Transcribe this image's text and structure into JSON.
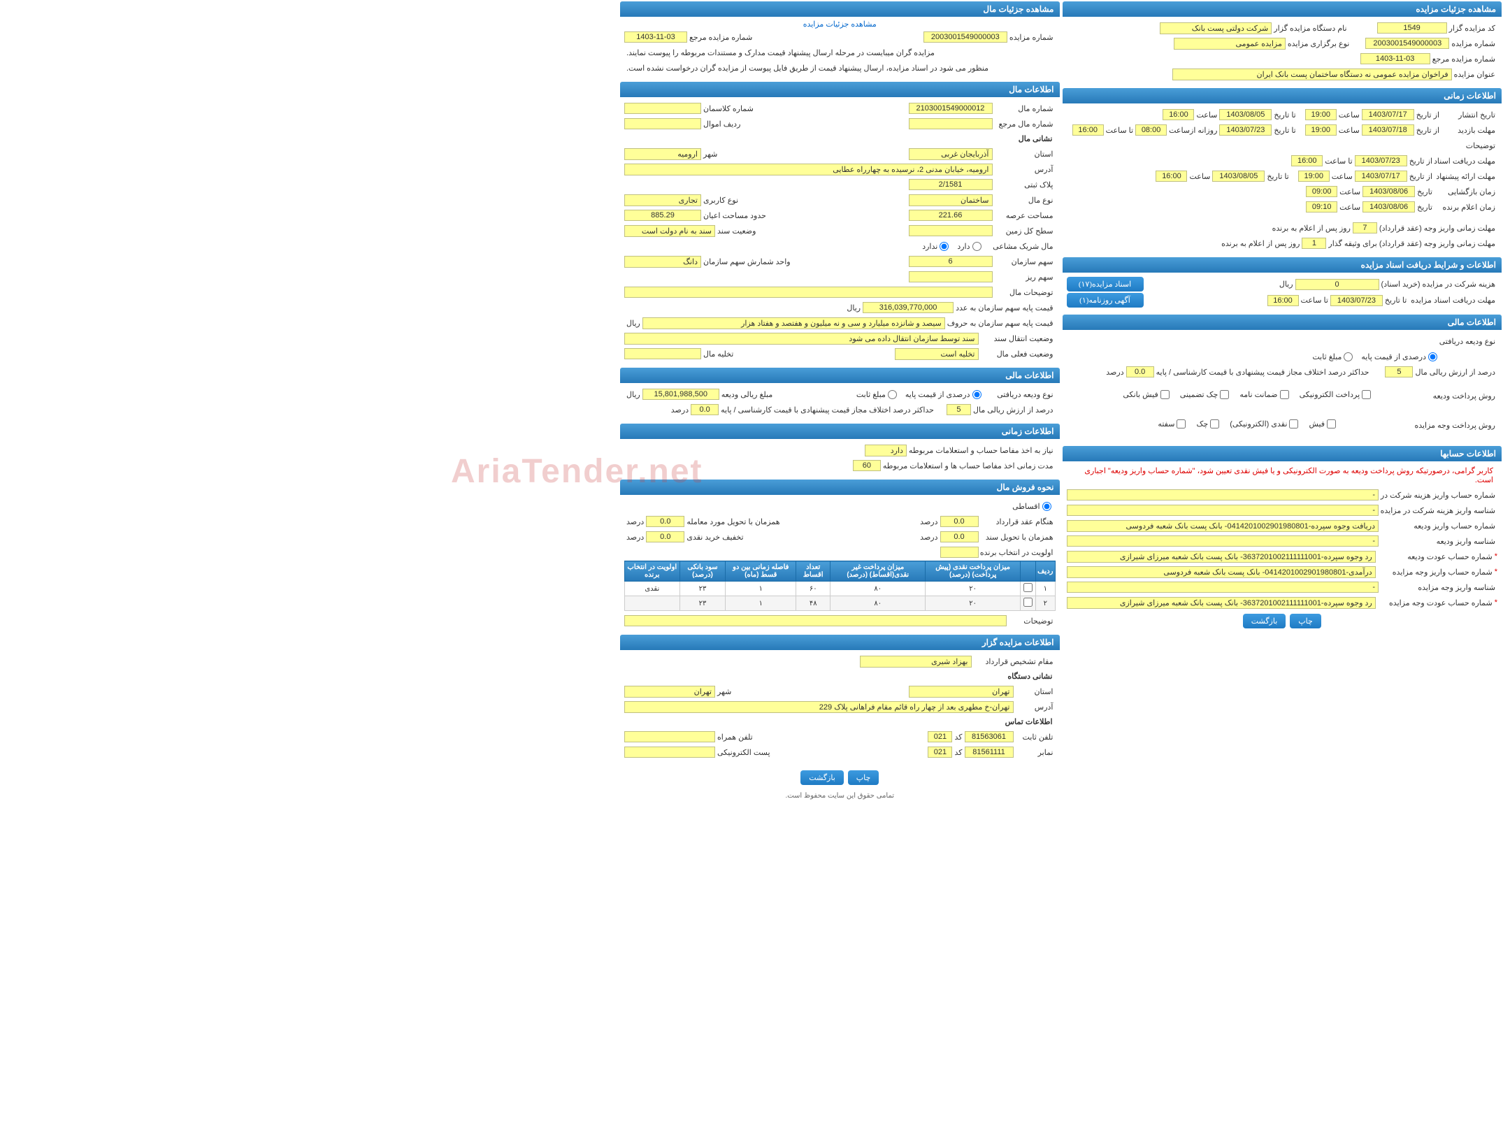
{
  "watermark": "AriaTender.net",
  "right": {
    "s1": {
      "title": "مشاهده جزئیات مزایده",
      "f": {
        "l1": "کد مزایده گزار",
        "v1": "1549",
        "l2": "نام دستگاه مزایده گزار",
        "v2": "شرکت دولتی پست بانک",
        "l3": "شماره مزایده",
        "v3": "2003001549000003",
        "l4": "نوع برگزاری مزایده",
        "v4": "مزایده عمومی",
        "l5": "شماره مزایده مرجع",
        "v5": "1403-11-03",
        "l6": "عنوان مزایده",
        "v6": "فراخوان مزایده عمومی نه دستگاه ساختمان پست بانک ایران"
      }
    },
    "s2": {
      "title": "اطلاعات زمانی",
      "rows": [
        {
          "l": "تاریخ انتشار",
          "a": "از تاریخ",
          "av": "1403/07/17",
          "at": "ساعت",
          "atv": "19:00",
          "b": "تا تاریخ",
          "bv": "1403/08/05",
          "bt": "ساعت",
          "btv": "16:00"
        },
        {
          "l": "مهلت بازدید",
          "a": "از تاریخ",
          "av": "1403/07/18",
          "at": "ساعت",
          "atv": "19:00",
          "b": "تا تاریخ",
          "bv": "1403/07/23",
          "bt": "روزانه ازساعت",
          "btv": "08:00",
          "c": "تا ساعت",
          "cv": "16:00"
        }
      ],
      "desc_label": "توضیحات",
      "rows2": [
        {
          "l": "مهلت دریافت اسناد",
          "a": "از تاریخ",
          "av": "1403/07/23",
          "at": "تا ساعت",
          "atv": "16:00"
        },
        {
          "l": "مهلت ارائه پیشنهاد",
          "a": "از تاریخ",
          "av": "1403/07/17",
          "at": "ساعت",
          "atv": "19:00",
          "b": "تا تاریخ",
          "bv": "1403/08/05",
          "bt": "ساعت",
          "btv": "16:00"
        },
        {
          "l": "زمان بازگشایی",
          "a": "تاریخ",
          "av": "1403/08/06",
          "at": "ساعت",
          "atv": "09:00"
        },
        {
          "l": "زمان اعلام برنده",
          "a": "تاریخ",
          "av": "1403/08/06",
          "at": "ساعت",
          "atv": "09:10"
        }
      ],
      "bottom": [
        {
          "l": "مهلت زمانی واریز وجه (عقد قرارداد)",
          "v": "7",
          "suf": "روز پس از اعلام به برنده"
        },
        {
          "l": "مهلت زمانی واریز وجه (عقد قرارداد) برای وثیقه گذار",
          "v": "1",
          "suf": "روز پس از اعلام به برنده"
        }
      ]
    },
    "s3": {
      "title": "اطلاعات و شرایط دریافت اسناد مزایده",
      "l1": "هزینه شرکت در مزایده (خرید اسناد)",
      "v1": "0",
      "unit1": "ریال",
      "btn1": "اسناد مزایده(۱۷)",
      "l2": "مهلت دریافت اسناد مزایده",
      "l2a": "تا تاریخ",
      "v2a": "1403/07/23",
      "l2b": "تا ساعت",
      "v2b": "16:00",
      "btn2": "آگهی روزنامه(۱)"
    },
    "s4": {
      "title": "اطلاعات مالی",
      "l1": "نوع ودیعه دریافتی",
      "r1": "درصدی از قیمت پایه",
      "r2": "مبلغ ثابت",
      "l2": "درصد از ارزش ریالی مال",
      "v2": "5",
      "l3": "حداکثر درصد اختلاف مجاز قیمت پیشنهادی با قیمت کارشناسی / پایه",
      "v3": "0.0",
      "unit3": "درصد",
      "l4": "روش پرداخت ودیعه",
      "opts4": [
        "پرداخت الکترونیکی",
        "ضمانت نامه",
        "چک تضمینی",
        "فیش بانکی"
      ],
      "l5": "روش پرداخت وجه مزایده",
      "opts5": [
        "فیش",
        "نقدی (الکترونیکی)",
        "چک",
        "سفته"
      ]
    },
    "s5": {
      "title": "اطلاعات حسابها",
      "note": "کاربر گرامی، درصورتیکه روش پرداخت ودیعه به صورت الکترونیکی و یا فیش نقدی تعیین شود، \"شماره حساب واریز ودیعه\" اجباری است.",
      "rows": [
        {
          "l": "شماره حساب واریز هزینه شرکت در مزایده",
          "v": "-"
        },
        {
          "l": "شناسه واریز هزینه شرکت در مزایده",
          "v": "-"
        },
        {
          "l": "شماره حساب واریز ودیعه",
          "v": "دریافت وجوه سپرده-0414201002901980801- بانک پست بانک شعبه فردوسی"
        },
        {
          "l": "شناسه واریز ودیعه",
          "v": "-"
        },
        {
          "l": "شماره حساب عودت ودیعه",
          "v": "رد وجوه سپرده-3637201002111111001- بانک پست بانک شعبه میرزای شیرازی",
          "star": true
        },
        {
          "l": "شماره حساب واریز وجه مزایده",
          "v": "درآمدی-0414201002901980801- بانک پست بانک شعبه فردوسی",
          "star": true
        },
        {
          "l": "شناسه واریز وجه مزایده",
          "v": "-"
        },
        {
          "l": "شماره حساب عودت وجه مزایده",
          "v": "رد وجوه سپرده-3637201002111111001- بانک پست بانک شعبه میرزای شیرازی",
          "star": true
        }
      ],
      "btns": [
        "بازگشت",
        "چاپ"
      ]
    }
  },
  "left": {
    "s1": {
      "title": "مشاهده جزئیات مال",
      "link": "مشاهده جزئیات مزایده",
      "l1": "شماره مزایده",
      "v1": "2003001549000003",
      "l2": "شماره مزایده مرجع",
      "v2": "1403-11-03",
      "note1": "مزایده گران میبایست در مرحله ارسال پیشنهاد قیمت مدارک و مستندات مربوطه را پیوست نمایند.",
      "note2": "منظور می شود در اسناد مزایده، ارسال پیشنهاد قیمت از طریق فایل پیوست از مزایده گران درخواست نشده است."
    },
    "s2": {
      "title": "اطلاعات مال",
      "l1": "شماره مال",
      "v1": "2103001549000012",
      "l2": "شماره کلاسمان",
      "v2": "",
      "l3": "شماره مال مرجع",
      "v3": "",
      "l4": "ردیف اموال",
      "v4": "",
      "sub1": "نشانی مال",
      "l5": "استان",
      "v5": "آذربایجان غربی",
      "l6": "شهر",
      "v6": "ارومیه",
      "l7": "آدرس",
      "v7": "ارومیه، خیابان مدنی 2، نرسیده به چهارراه عطایی",
      "l8": "پلاک ثبتی",
      "v8": "2/1581",
      "l9": "نوع مال",
      "v9": "ساختمان",
      "l10": "نوع کاربری",
      "v10": "تجاری",
      "l11": "مساحت عرصه",
      "v11": "221.66",
      "l12": "حدود مساحت اعیان",
      "v12": "885.29",
      "l13": "سطح کل زمین",
      "v13": "",
      "l14": "وضعیت سند",
      "v14": "سند به نام دولت است",
      "l15": "مال شریک مشاعی",
      "r15a": "دارد",
      "r15b": "ندارد",
      "l16": "سهم سازمان",
      "v16": "6",
      "l17": "واحد شمارش سهم سازمان",
      "v17": "دانگ",
      "l18": "سهم ریز",
      "v18": "",
      "l19": "توضیحات مال",
      "v19": "",
      "l20": "قیمت پایه سهم سازمان به عدد",
      "v20": "316,039,770,000",
      "unit20": "ریال",
      "l21": "قیمت پایه سهم سازمان به حروف",
      "v21": "سیصد و شانزده میلیارد و سی و نه میلیون و هفتصد و هفتاد هزار",
      "unit21": "ریال",
      "l22": "وضعیت انتقال سند",
      "v22": "سند توسط سازمان انتقال داده می شود",
      "l23": "وضعیت فعلی مال",
      "v23": "تخلیه است",
      "l24": "تخلیه مال",
      "v24": ""
    },
    "s3": {
      "title": "اطلاعات مالی",
      "l1": "نوع ودیعه دریافتی",
      "r1a": "درصدی از قیمت پایه",
      "r1b": "مبلغ ثابت",
      "l2": "مبلغ ریالی ودیعه",
      "v2": "15,801,988,500",
      "unit2": "ریال",
      "l3": "درصد از ارزش ریالی مال",
      "v3": "5",
      "l4": "حداکثر درصد اختلاف مجاز قیمت پیشنهادی با قیمت کارشناسی / پایه",
      "v4": "0.0",
      "unit4": "درصد"
    },
    "s4": {
      "title": "اطلاعات زمانی",
      "l1": "نیاز به اخذ مفاصا حساب و استعلامات مربوطه",
      "v1": "دارد",
      "l2": "مدت زمانی اخذ مفاصا حساب ها و استعلامات مربوطه",
      "v2": "60"
    },
    "s5": {
      "title": "نحوه فروش مال",
      "r1": "اقساطی",
      "l1": "هنگام عقد قرارداد",
      "v1": "0.0",
      "unit1": "درصد",
      "l2": "همزمان با تحویل مورد معامله",
      "v2": "0.0",
      "unit2": "درصد",
      "l3": "همزمان با تحویل سند",
      "v3": "0.0",
      "unit3": "درصد",
      "l4": "تخفیف خرید نقدی",
      "v4": "0.0",
      "unit4": "درصد",
      "l5": "اولویت در انتخاب برنده",
      "v5": "",
      "table": {
        "cols": [
          "ردیف",
          "",
          "میزان پرداخت نقدی (پیش پرداخت) (درصد)",
          "میزان پرداخت غیر نقدی(اقساط) (درصد)",
          "تعداد اقساط",
          "فاصله زمانی بین دو قسط (ماه)",
          "سود بانکی (درصد)",
          "اولویت در انتخاب برنده"
        ],
        "rows": [
          [
            "۱",
            "",
            "۲۰",
            "۸۰",
            "۶۰",
            "۱",
            "۲۳",
            "نقدی"
          ],
          [
            "۲",
            "",
            "۲۰",
            "۸۰",
            "۴۸",
            "۱",
            "۲۳",
            ""
          ]
        ]
      },
      "l6": "توضیحات",
      "v6": ""
    },
    "s6": {
      "title": "اطلاعات مزایده گزار",
      "l1": "مقام تشخیص قرارداد",
      "v1": "بهزاد  شیری",
      "sub": "نشانی دستگاه",
      "l2": "استان",
      "v2": "تهران",
      "l3": "شهر",
      "v3": "تهران",
      "l4": "آدرس",
      "v4": "تهران-خ مطهری بعد از چهار راه قائم مقام فراهانی پلاک 229",
      "sub2": "اطلاعات تماس",
      "l5": "تلفن ثابت",
      "v5": "81563061",
      "l5b": "کد",
      "v5b": "021",
      "l6": "تلفن همراه",
      "v6": "",
      "l7": "نمابر",
      "v7": "81561111",
      "l7b": "کد",
      "v7b": "021",
      "l8": "پست الکترونیکی",
      "v8": ""
    },
    "btns": [
      "بازگشت",
      "چاپ"
    ],
    "footer": "تمامی حقوق این سایت محفوظ است."
  }
}
